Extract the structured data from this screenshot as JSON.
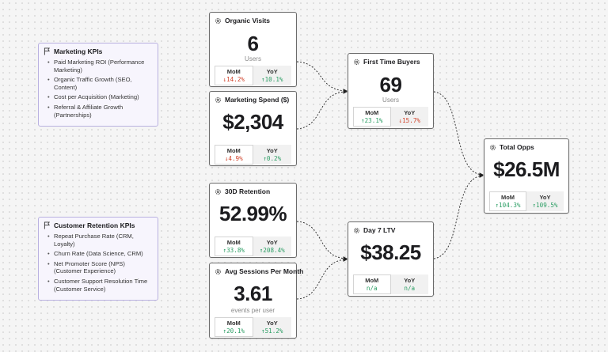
{
  "colors": {
    "positive": "#2a9d63",
    "negative": "#d1432b",
    "kpi_box_background": "#f7f5fd",
    "kpi_box_border": "#b9b1e0",
    "card_border": "#6b6b6b"
  },
  "kpi_groups": [
    {
      "title": "Marketing KPIs",
      "icon": "flag-icon",
      "items": [
        "Paid Marketing ROI (Performance Marketing)",
        "Organic Traffic Growth (SEO, Content)",
        "Cost per Acquisition (Marketing)",
        "Referral & Affiliate Growth (Partnerships)"
      ]
    },
    {
      "title": "Customer Retention KPIs",
      "icon": "flag-icon",
      "items": [
        "Repeat Purchase Rate (CRM, Loyalty)",
        "Churn Rate (Data Science, CRM)",
        "Net Promoter Score (NPS) (Customer Experience)",
        "Customer Support Resolution Time (Customer Service)"
      ]
    }
  ],
  "metrics": {
    "organic_visits": {
      "title": "Organic Visits",
      "value": "6",
      "unit": "Users",
      "mom_label": "MoM",
      "mom": "↓14.2%",
      "mom_trend": "down",
      "yoy_label": "YoY",
      "yoy": "↑10.1%",
      "yoy_trend": "up"
    },
    "marketing_spend": {
      "title": "Marketing Spend ($)",
      "value": "$2,304",
      "unit": "",
      "mom_label": "MoM",
      "mom": "↓4.9%",
      "mom_trend": "down",
      "yoy_label": "YoY",
      "yoy": "↑0.2%",
      "yoy_trend": "up"
    },
    "retention_30d": {
      "title": "30D Retention",
      "value": "52.99%",
      "unit": "",
      "mom_label": "MoM",
      "mom": "↑33.8%",
      "mom_trend": "up",
      "yoy_label": "YoY",
      "yoy": "↑208.4%",
      "yoy_trend": "up"
    },
    "avg_sessions": {
      "title": "Avg Sessions Per Month",
      "value": "3.61",
      "unit": "events per user",
      "mom_label": "MoM",
      "mom": "↑20.1%",
      "mom_trend": "up",
      "yoy_label": "YoY",
      "yoy": "↑51.2%",
      "yoy_trend": "up"
    },
    "first_time_buyers": {
      "title": "First Time Buyers",
      "value": "69",
      "unit": "Users",
      "mom_label": "MoM",
      "mom": "↑23.1%",
      "mom_trend": "up",
      "yoy_label": "YoY",
      "yoy": "↓15.7%",
      "yoy_trend": "down"
    },
    "day7_ltv": {
      "title": "Day 7 LTV",
      "value": "$38.25",
      "unit": "",
      "mom_label": "MoM",
      "mom": "n/a",
      "mom_trend": "na",
      "yoy_label": "YoY",
      "yoy": "n/a",
      "yoy_trend": "na"
    },
    "total_opps": {
      "title": "Total Opps",
      "value": "$26.5M",
      "unit": "",
      "mom_label": "MoM",
      "mom": "↑104.3%",
      "mom_trend": "up",
      "yoy_label": "YoY",
      "yoy": "↑109.5%",
      "yoy_trend": "up"
    }
  },
  "connections": [
    {
      "from": "organic_visits",
      "to": "first_time_buyers"
    },
    {
      "from": "marketing_spend",
      "to": "first_time_buyers"
    },
    {
      "from": "retention_30d",
      "to": "day7_ltv"
    },
    {
      "from": "avg_sessions",
      "to": "day7_ltv"
    },
    {
      "from": "first_time_buyers",
      "to": "total_opps"
    },
    {
      "from": "day7_ltv",
      "to": "total_opps"
    }
  ]
}
